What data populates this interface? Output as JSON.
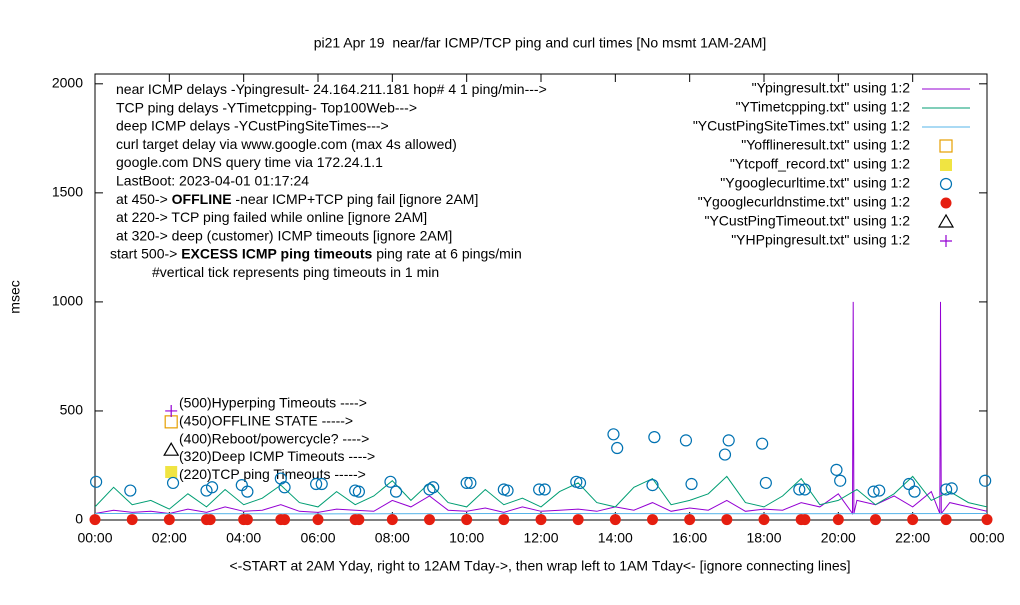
{
  "chart_data": {
    "type": "timeseries",
    "title": "pi21 Apr 19  near/far ICMP/TCP ping and curl times [No msmt 1AM-2AM]",
    "y_label": "msec",
    "x_label": "<-START at 2AM Yday, right to 12AM Tday->, then wrap left to 1AM Tday<- [ignore connecting lines]",
    "xlim": [
      0,
      24
    ],
    "xticks": [
      {
        "value": 0,
        "label": "00:00"
      },
      {
        "value": 2,
        "label": "02:00"
      },
      {
        "value": 4,
        "label": "04:00"
      },
      {
        "value": 6,
        "label": "06:00"
      },
      {
        "value": 8,
        "label": "08:00"
      },
      {
        "value": 10,
        "label": "10:00"
      },
      {
        "value": 12,
        "label": "12:00"
      },
      {
        "value": 14,
        "label": "14:00"
      },
      {
        "value": 16,
        "label": "16:00"
      },
      {
        "value": 18,
        "label": "18:00"
      },
      {
        "value": 20,
        "label": "20:00"
      },
      {
        "value": 22,
        "label": "22:00"
      },
      {
        "value": 24,
        "label": "00:00"
      }
    ],
    "ylim": [
      0,
      2045
    ],
    "yticks": [
      0,
      500,
      1000,
      1500,
      2000
    ],
    "legend": "top-right",
    "annotations": [
      [
        {
          "text": "near ICMP delays -Ypingresult- 24.164.211.181 hop# 4 1 ping/min--->"
        }
      ],
      [
        {
          "text": "TCP ping delays -YTimetcpping- Top100Web--->"
        }
      ],
      [
        {
          "text": "deep ICMP delays -YCustPingSiteTimes--->"
        }
      ],
      [
        {
          "text": "curl target delay via www.google.com (max 4s allowed)"
        }
      ],
      [
        {
          "text": "google.com DNS query time via 172.24.1.1"
        }
      ],
      [
        {
          "text": "LastBoot: 2023-04-01 01:17:24"
        }
      ],
      [
        {
          "text": "at 450-> "
        },
        {
          "text": "OFFLINE",
          "bold": true
        },
        {
          "text": " -near ICMP+TCP ping fail [ignore 2AM]"
        }
      ],
      [
        {
          "text": "at 220-> TCP ping failed while online [ignore 2AM]"
        }
      ],
      [
        {
          "text": "at 320-> deep (customer) ICMP timeouts [ignore 2AM]"
        }
      ],
      [
        {
          "text": "start 500-> "
        },
        {
          "text": "EXCESS ICMP ping timeouts",
          "bold": true
        },
        {
          "text": " ping rate at 6 pings/min"
        }
      ],
      [
        {
          "text": "#vertical tick represents ping timeouts in 1 min"
        }
      ]
    ],
    "marker_labels": [
      "(500)Hyperping Timeouts ---->",
      "(450)OFFLINE STATE ----->",
      "(400)Reboot/powercycle? ---->",
      "(320)Deep ICMP Timeouts ---->",
      "(220)TCP ping Timeouts ----->"
    ],
    "series": [
      {
        "name": "\"Ypingresult.txt\" using 1:2",
        "style": "line",
        "color": "#9400d3",
        "x": [
          0,
          0.5,
          1,
          1.5,
          2,
          2.5,
          3,
          3.5,
          4,
          4.5,
          5,
          5.5,
          6,
          6.5,
          7,
          7.5,
          8,
          8.5,
          9,
          9.5,
          10,
          10.5,
          11,
          11.5,
          12,
          12.5,
          13,
          13.5,
          14,
          14.5,
          15,
          15.5,
          16,
          16.5,
          17,
          17.5,
          18,
          18.5,
          19,
          19.5,
          20,
          20.38,
          20.4,
          20.42,
          20.5,
          21,
          21.5,
          22,
          22.5,
          22.73,
          22.75,
          22.77,
          23,
          23.5,
          24
        ],
        "values": [
          30,
          45,
          35,
          40,
          30,
          50,
          35,
          60,
          40,
          45,
          70,
          40,
          35,
          50,
          45,
          40,
          90,
          60,
          110,
          45,
          40,
          55,
          35,
          60,
          40,
          45,
          50,
          40,
          60,
          45,
          80,
          40,
          55,
          45,
          90,
          40,
          50,
          45,
          80,
          60,
          120,
          30,
          1000,
          30,
          90,
          70,
          110,
          60,
          130,
          30,
          1000,
          30,
          80,
          60,
          40
        ]
      },
      {
        "name": "\"YTimetcpping.txt\" using 1:2",
        "style": "line",
        "color": "#009e73",
        "x": [
          0,
          0.5,
          1,
          1.5,
          2,
          2.5,
          3,
          3.5,
          4,
          4.5,
          5,
          5.5,
          6,
          6.5,
          7,
          7.5,
          8,
          8.5,
          9,
          9.5,
          10,
          10.5,
          11,
          11.5,
          12,
          12.5,
          13,
          13.5,
          14,
          14.5,
          15,
          15.5,
          16,
          16.5,
          17,
          17.5,
          18,
          18.5,
          19,
          19.5,
          20,
          20.5,
          21,
          21.5,
          22,
          22.5,
          23,
          23.5,
          24
        ],
        "values": [
          60,
          150,
          70,
          90,
          50,
          120,
          60,
          140,
          70,
          100,
          160,
          80,
          60,
          130,
          70,
          110,
          180,
          90,
          170,
          80,
          60,
          140,
          70,
          100,
          60,
          130,
          170,
          80,
          60,
          150,
          190,
          70,
          90,
          120,
          200,
          80,
          60,
          110,
          190,
          70,
          90,
          140,
          70,
          120,
          200,
          90,
          130,
          80,
          60
        ]
      },
      {
        "name": "\"YCustPingSiteTimes.txt\" using 1:2",
        "style": "line",
        "color": "#56b4e9",
        "x": [
          0,
          6,
          12,
          18,
          24
        ],
        "values": [
          30,
          28,
          30,
          29,
          30
        ]
      },
      {
        "name": "\"Yofflineresult.txt\" using 1:2",
        "style": "open-square",
        "color": "#e69f00",
        "x": [
          2.05
        ],
        "values": [
          450
        ]
      },
      {
        "name": "\"Ytcpoff_record.txt\" using 1:2",
        "style": "filled-square",
        "color": "#f0e442",
        "x": [
          2.05
        ],
        "values": [
          220
        ]
      },
      {
        "name": "\"Ygooglecurltime.txt\" using 1:2",
        "style": "open-circle",
        "color": "#0072b2",
        "x": [
          0.03,
          0.95,
          2.1,
          3.0,
          3.15,
          3.95,
          4.1,
          5.0,
          5.1,
          5.95,
          6.1,
          7.0,
          7.1,
          7.95,
          8.1,
          9.0,
          9.1,
          10.0,
          10.1,
          11.0,
          11.1,
          11.95,
          12.1,
          12.95,
          13.05,
          13.95,
          14.05,
          15.0,
          15.05,
          15.9,
          16.05,
          16.95,
          17.05,
          17.95,
          18.05,
          18.95,
          19.1,
          19.95,
          20.05,
          20.95,
          21.1,
          21.9,
          22.05,
          22.9,
          23.05,
          23.95
        ],
        "values": [
          175,
          135,
          170,
          135,
          150,
          160,
          130,
          190,
          150,
          165,
          165,
          135,
          130,
          175,
          130,
          140,
          150,
          170,
          170,
          140,
          135,
          140,
          140,
          175,
          170,
          393,
          330,
          160,
          380,
          365,
          165,
          300,
          365,
          350,
          170,
          140,
          140,
          230,
          180,
          130,
          135,
          165,
          130,
          140,
          145,
          180
        ]
      },
      {
        "name": "\"Ygooglecurldnstime.txt\" using 1:2",
        "style": "filled-circle",
        "color": "#e51e10",
        "x": [
          0,
          1,
          2,
          3,
          3.1,
          4,
          4.1,
          5,
          5.1,
          6,
          7,
          7.1,
          8,
          9,
          10,
          11,
          12,
          13,
          14,
          15,
          16,
          17,
          18,
          19,
          19.1,
          20,
          21,
          22,
          22.9,
          24
        ],
        "values": [
          2,
          2,
          2,
          2,
          2,
          2,
          2,
          2,
          2,
          2,
          2,
          2,
          2,
          2,
          2,
          2,
          2,
          2,
          2,
          2,
          2,
          2,
          2,
          2,
          2,
          2,
          2,
          2,
          2,
          2
        ]
      },
      {
        "name": "\"YCustPingTimeout.txt\" using 1:2",
        "style": "open-triangle",
        "color": "#000000",
        "x": [
          2.05
        ],
        "values": [
          320
        ]
      },
      {
        "name": "\"YHPpingresult.txt\" using 1:2",
        "style": "plus",
        "color": "#9400d3",
        "x": [
          2.05
        ],
        "values": [
          500
        ]
      }
    ]
  }
}
